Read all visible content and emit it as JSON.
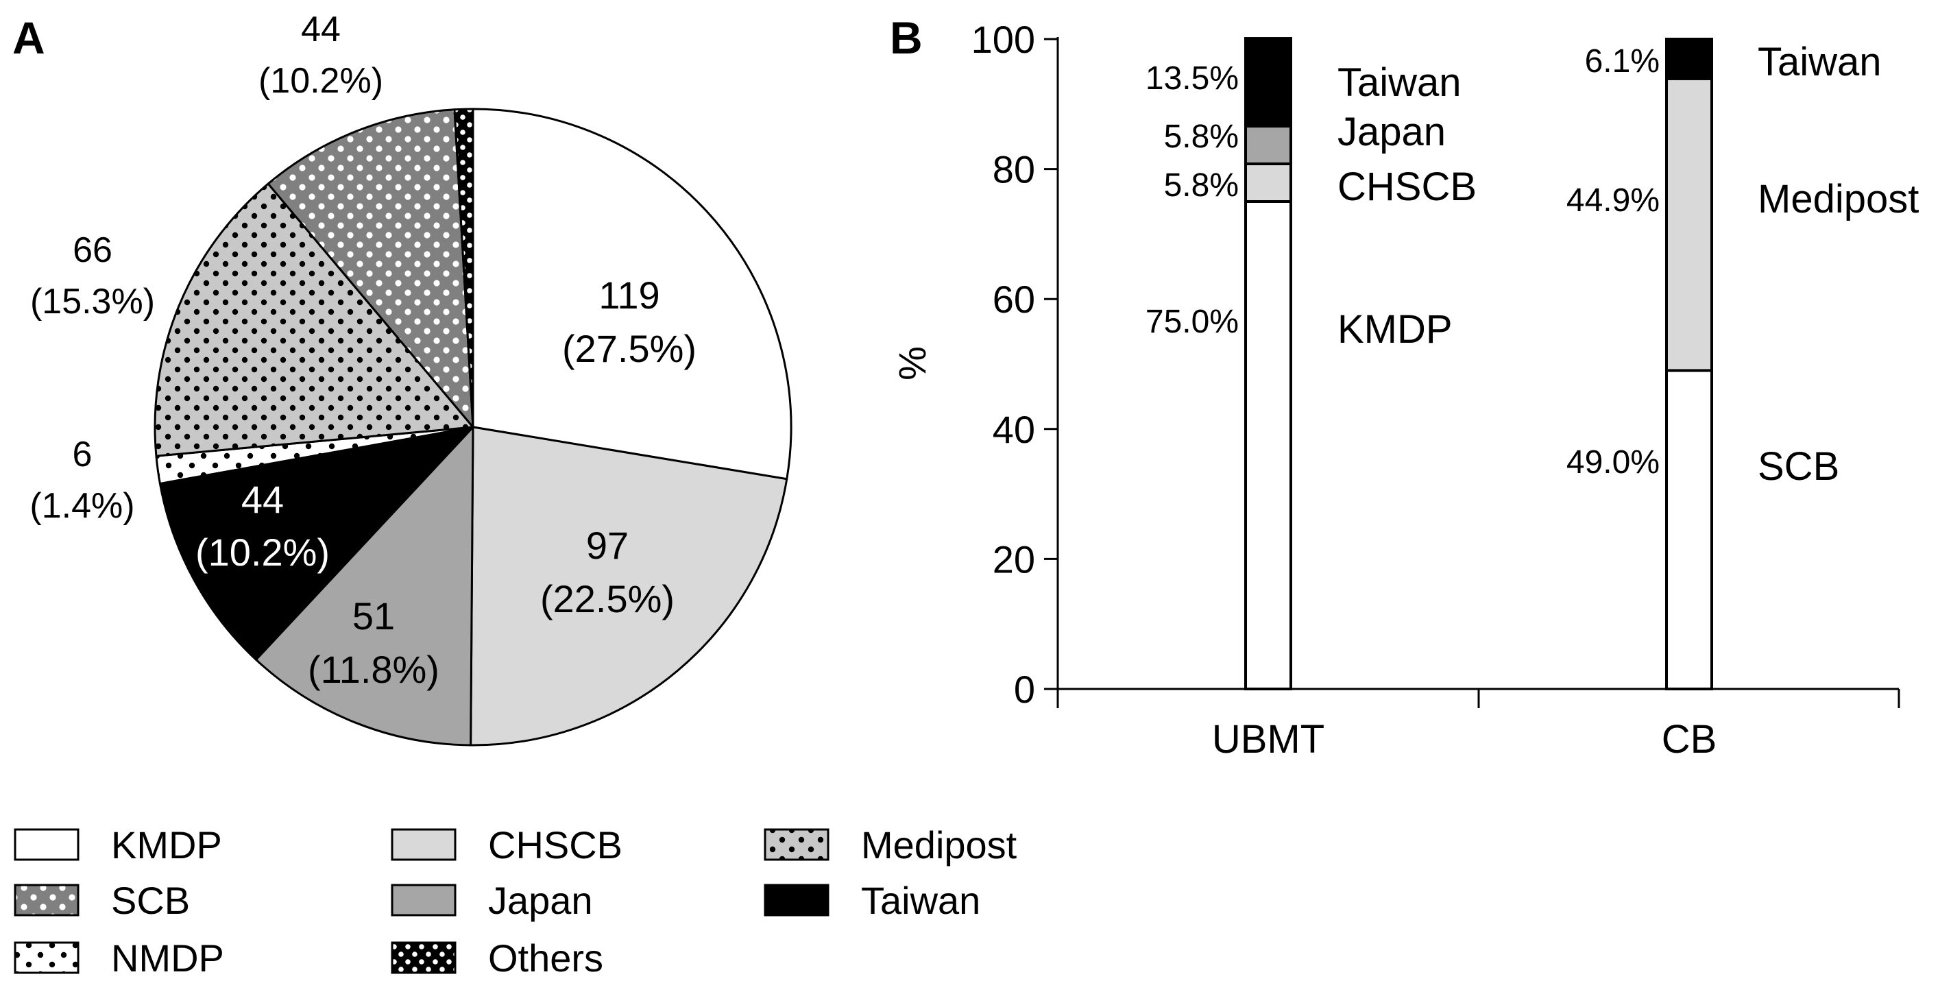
{
  "panels": {
    "a_label": "A",
    "b_label": "B"
  },
  "colors": {
    "KMDP": "#ffffff",
    "CHSCB": "#d9d9d9",
    "Japan": "#a6a6a6",
    "Taiwan": "#000000",
    "NMDP": "#ffffff",
    "Medipost": "#c8c8c8",
    "SCB": "#808080",
    "Others": "#000000"
  },
  "chart_data": [
    {
      "panel": "A",
      "type": "pie",
      "title": "",
      "start": "12 o'clock, clockwise",
      "slices": [
        {
          "name": "KMDP",
          "value": 119,
          "percent": "27.5%",
          "value_label": "119",
          "percent_label": "(27.5%)",
          "pattern": "solid",
          "label_color": "#000000"
        },
        {
          "name": "CHSCB",
          "value": 97,
          "percent": "22.5%",
          "value_label": "97",
          "percent_label": "(22.5%)",
          "pattern": "solid",
          "label_color": "#000000"
        },
        {
          "name": "Japan",
          "value": 51,
          "percent": "11.8%",
          "value_label": "51",
          "percent_label": "(11.8%)",
          "pattern": "solid",
          "label_color": "#000000"
        },
        {
          "name": "Taiwan",
          "value": 44,
          "percent": "10.2%",
          "value_label": "44",
          "percent_label": "(10.2%)",
          "pattern": "solid",
          "label_color": "#ffffff"
        },
        {
          "name": "NMDP",
          "value": 6,
          "percent": "1.4%",
          "value_label": "6",
          "percent_label": "(1.4%)",
          "pattern": "dots",
          "label_color": "#000000"
        },
        {
          "name": "Medipost",
          "value": 66,
          "percent": "15.3%",
          "value_label": "66",
          "percent_label": "(15.3%)",
          "pattern": "dots",
          "label_color": "#000000"
        },
        {
          "name": "SCB",
          "value": 44,
          "percent": "10.2%",
          "value_label": "44",
          "percent_label": "(10.2%)",
          "pattern": "dots",
          "label_color": "#000000"
        },
        {
          "name": "Others",
          "value": 4,
          "percent": "",
          "value_label": "",
          "percent_label": "",
          "pattern": "dots",
          "label_color": "#000000"
        }
      ],
      "legend": {
        "placement": "bottom-left",
        "items": [
          "KMDP",
          "SCB",
          "NMDP",
          "CHSCB",
          "Japan",
          "Others",
          "Medipost",
          "Taiwan"
        ]
      }
    },
    {
      "panel": "B",
      "type": "bar",
      "stacked": true,
      "title": "",
      "categories": [
        "UBMT",
        "CB"
      ],
      "ylabel": "%",
      "ylim": [
        0,
        100
      ],
      "yticks": [
        0,
        20,
        40,
        60,
        80,
        100
      ],
      "bars": [
        {
          "category": "UBMT",
          "segments": [
            {
              "name": "KMDP",
              "value": 75.0,
              "label": "75.0%"
            },
            {
              "name": "CHSCB",
              "value": 5.8,
              "label": "5.8%"
            },
            {
              "name": "Japan",
              "value": 5.8,
              "label": "5.8%"
            },
            {
              "name": "Taiwan",
              "value": 13.5,
              "label": "13.5%"
            }
          ]
        },
        {
          "category": "CB",
          "segments": [
            {
              "name": "SCB",
              "value": 49.0,
              "label": "49.0%"
            },
            {
              "name": "Medipost",
              "value": 44.9,
              "label": "44.9%"
            },
            {
              "name": "Taiwan",
              "value": 6.1,
              "label": "6.1%"
            }
          ]
        }
      ]
    }
  ]
}
